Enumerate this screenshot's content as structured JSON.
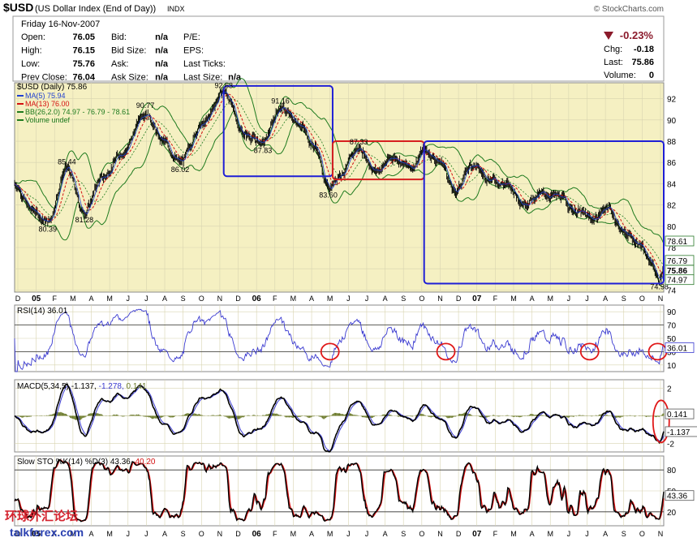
{
  "header": {
    "symbol": "$USD",
    "name": "(US Dollar Index (End of Day))",
    "exchange": "INDX",
    "brand": "© StockCharts.com",
    "date": "Friday  16-Nov-2007",
    "quote_rows": [
      {
        "l1": "Open:",
        "v1": "76.05",
        "l2": "Bid:",
        "v2": "n/a",
        "l3": "P/E:",
        "v3": ""
      },
      {
        "l1": "High:",
        "v1": "76.15",
        "l2": "Bid Size:",
        "v2": "n/a",
        "l3": "EPS:",
        "v3": ""
      },
      {
        "l1": "Low:",
        "v1": "75.76",
        "l2": "Ask:",
        "v2": "n/a",
        "l3": "Last Ticks:",
        "v3": ""
      },
      {
        "l1": "Prev Close:",
        "v1": "76.04",
        "l2": "Ask Size:",
        "v2": "n/a",
        "l3": "Last Size:",
        "v3": "n/a"
      }
    ],
    "change_pct": "-0.23%",
    "right_rows": [
      {
        "label": "Chg:",
        "value": "-0.18"
      },
      {
        "label": "Last:",
        "value": "75.86"
      },
      {
        "label": "Volume:",
        "value": "0"
      }
    ]
  },
  "chart_data": [
    {
      "type": "line",
      "title": "$USD (Daily) 75.86",
      "legend": [
        "MA(5) 75.94",
        "MA(13) 76.00",
        "BB(26,2.0) 74.97 - 76.79 - 78.61",
        "Volume undef"
      ],
      "ylim": [
        73.8,
        93.5
      ],
      "yticks": [
        74,
        76,
        78,
        80,
        82,
        84,
        86,
        88,
        90,
        92
      ],
      "x_labels": [
        "D",
        "05",
        "F",
        "M",
        "A",
        "M",
        "J",
        "J",
        "A",
        "S",
        "O",
        "N",
        "D",
        "06",
        "F",
        "M",
        "A",
        "M",
        "J",
        "J",
        "A",
        "S",
        "O",
        "N",
        "D",
        "07",
        "F",
        "M",
        "A",
        "M",
        "J",
        "J",
        "A",
        "S",
        "O",
        "N"
      ],
      "anchors": [
        {
          "d": 0,
          "v": 84.0
        },
        {
          "d": 20,
          "v": 81.5
        },
        {
          "d": 38,
          "v": 80.39
        },
        {
          "d": 60,
          "v": 85.44
        },
        {
          "d": 80,
          "v": 81.28
        },
        {
          "d": 100,
          "v": 84.5
        },
        {
          "d": 125,
          "v": 87.0
        },
        {
          "d": 150,
          "v": 90.77
        },
        {
          "d": 170,
          "v": 88.0
        },
        {
          "d": 190,
          "v": 86.02
        },
        {
          "d": 215,
          "v": 89.5
        },
        {
          "d": 240,
          "v": 92.63
        },
        {
          "d": 265,
          "v": 88.6
        },
        {
          "d": 285,
          "v": 87.83
        },
        {
          "d": 305,
          "v": 91.16
        },
        {
          "d": 325,
          "v": 89.8
        },
        {
          "d": 345,
          "v": 87.5
        },
        {
          "d": 360,
          "v": 83.6
        },
        {
          "d": 375,
          "v": 85.0
        },
        {
          "d": 395,
          "v": 87.33
        },
        {
          "d": 415,
          "v": 85.2
        },
        {
          "d": 435,
          "v": 86.5
        },
        {
          "d": 455,
          "v": 85.5
        },
        {
          "d": 470,
          "v": 87.1
        },
        {
          "d": 490,
          "v": 86.0
        },
        {
          "d": 505,
          "v": 83.2
        },
        {
          "d": 525,
          "v": 85.8
        },
        {
          "d": 545,
          "v": 84.5
        },
        {
          "d": 565,
          "v": 83.9
        },
        {
          "d": 585,
          "v": 82.2
        },
        {
          "d": 605,
          "v": 83.0
        },
        {
          "d": 625,
          "v": 82.8
        },
        {
          "d": 645,
          "v": 81.4
        },
        {
          "d": 665,
          "v": 80.7
        },
        {
          "d": 680,
          "v": 81.8
        },
        {
          "d": 700,
          "v": 79.4
        },
        {
          "d": 715,
          "v": 78.5
        },
        {
          "d": 730,
          "v": 76.7
        },
        {
          "d": 740,
          "v": 74.98
        },
        {
          "d": 745,
          "v": 75.86
        }
      ],
      "annotations": [
        {
          "d": 38,
          "v": 80.39,
          "text": "80.39",
          "pos": "below"
        },
        {
          "d": 60,
          "v": 85.44,
          "text": "85.44",
          "pos": "above"
        },
        {
          "d": 80,
          "v": 81.28,
          "text": "81.28",
          "pos": "below"
        },
        {
          "d": 150,
          "v": 90.77,
          "text": "90.77",
          "pos": "above"
        },
        {
          "d": 190,
          "v": 86.02,
          "text": "86.02",
          "pos": "below"
        },
        {
          "d": 240,
          "v": 92.63,
          "text": "92.63",
          "pos": "above"
        },
        {
          "d": 285,
          "v": 87.83,
          "text": "87.83",
          "pos": "below"
        },
        {
          "d": 305,
          "v": 91.16,
          "text": "91.16",
          "pos": "above"
        },
        {
          "d": 360,
          "v": 83.6,
          "text": "83.60",
          "pos": "below"
        },
        {
          "d": 395,
          "v": 87.33,
          "text": "87.33",
          "pos": "above"
        },
        {
          "d": 740,
          "v": 74.98,
          "text": "74.98",
          "pos": "below"
        }
      ],
      "right_labels": [
        {
          "v": 78.61,
          "text": "78.61"
        },
        {
          "v": 76.79,
          "text": "76.79"
        },
        {
          "v": 75.86,
          "text": "75.86",
          "bold": true
        },
        {
          "v": 74.97,
          "text": "74.97"
        }
      ],
      "boxes": [
        {
          "d0": 240,
          "d1": 365,
          "v0": 84.7,
          "v1": 93.2,
          "color": "#1f1fd6"
        },
        {
          "d0": 365,
          "d1": 470,
          "v0": 84.4,
          "v1": 88.0,
          "color": "#d61f1f"
        },
        {
          "d0": 470,
          "d1": 745,
          "v0": 74.6,
          "v1": 88.0,
          "color": "#1f1fd6"
        }
      ],
      "colors": {
        "price": "#000000",
        "ma5": "#1f3fd0",
        "ma13": "#d41010",
        "bb": "#1e7a1e",
        "bg": "#f5f0c2"
      }
    },
    {
      "type": "line",
      "title": "RSI(14) 36.01",
      "ylim": [
        0,
        100
      ],
      "yticks": [
        10,
        30,
        50,
        70,
        90
      ],
      "levels": [
        30,
        70
      ],
      "last": 36.01,
      "last_label": "36.01",
      "circles": [
        {
          "d": 362,
          "v": 30
        },
        {
          "d": 495,
          "v": 30
        },
        {
          "d": 660,
          "v": 30
        },
        {
          "d": 738,
          "v": 30
        }
      ],
      "color": "#3a3ad0"
    },
    {
      "type": "line",
      "title": "MACD(5,34,5) -1.137, -1.278, 0.141",
      "values_label": [
        "MACD(5,34,5)",
        "-1.137",
        "-1.278",
        "0.141"
      ],
      "ylim": [
        -2.6,
        2.6
      ],
      "yticks": [
        -2,
        0,
        2
      ],
      "right_labels": [
        {
          "v": 0.141,
          "text": "0.141"
        },
        {
          "v": -1.137,
          "text": "-1.137"
        }
      ],
      "circles": [
        {
          "d": 742,
          "v": -0.4
        }
      ],
      "colors": {
        "macd": "#000000",
        "signal": "#3a3ad0",
        "hist": "#6b7a2b"
      }
    },
    {
      "type": "line",
      "title": "Slow STO %K(14) %D(3) 43.36, 40.20",
      "values_label": [
        "Slow STO %K(14) %D(3)",
        "43.36",
        "40.20"
      ],
      "ylim": [
        0,
        100
      ],
      "yticks": [
        20,
        50,
        80
      ],
      "levels": [
        20,
        80
      ],
      "last_label": "43.36",
      "x_labels": [
        "D",
        "05",
        "F",
        "M",
        "A",
        "M",
        "J",
        "J",
        "A",
        "S",
        "O",
        "N",
        "D",
        "06",
        "F",
        "M",
        "A",
        "M",
        "J",
        "J",
        "A",
        "S",
        "O",
        "N",
        "D",
        "07",
        "F",
        "M",
        "A",
        "M",
        "J",
        "J",
        "A",
        "S",
        "O",
        "N"
      ],
      "colors": {
        "k": "#000000",
        "d": "#d41010"
      }
    }
  ],
  "watermark": {
    "cn": "环球外汇论坛",
    "url": "talkforex.com"
  }
}
